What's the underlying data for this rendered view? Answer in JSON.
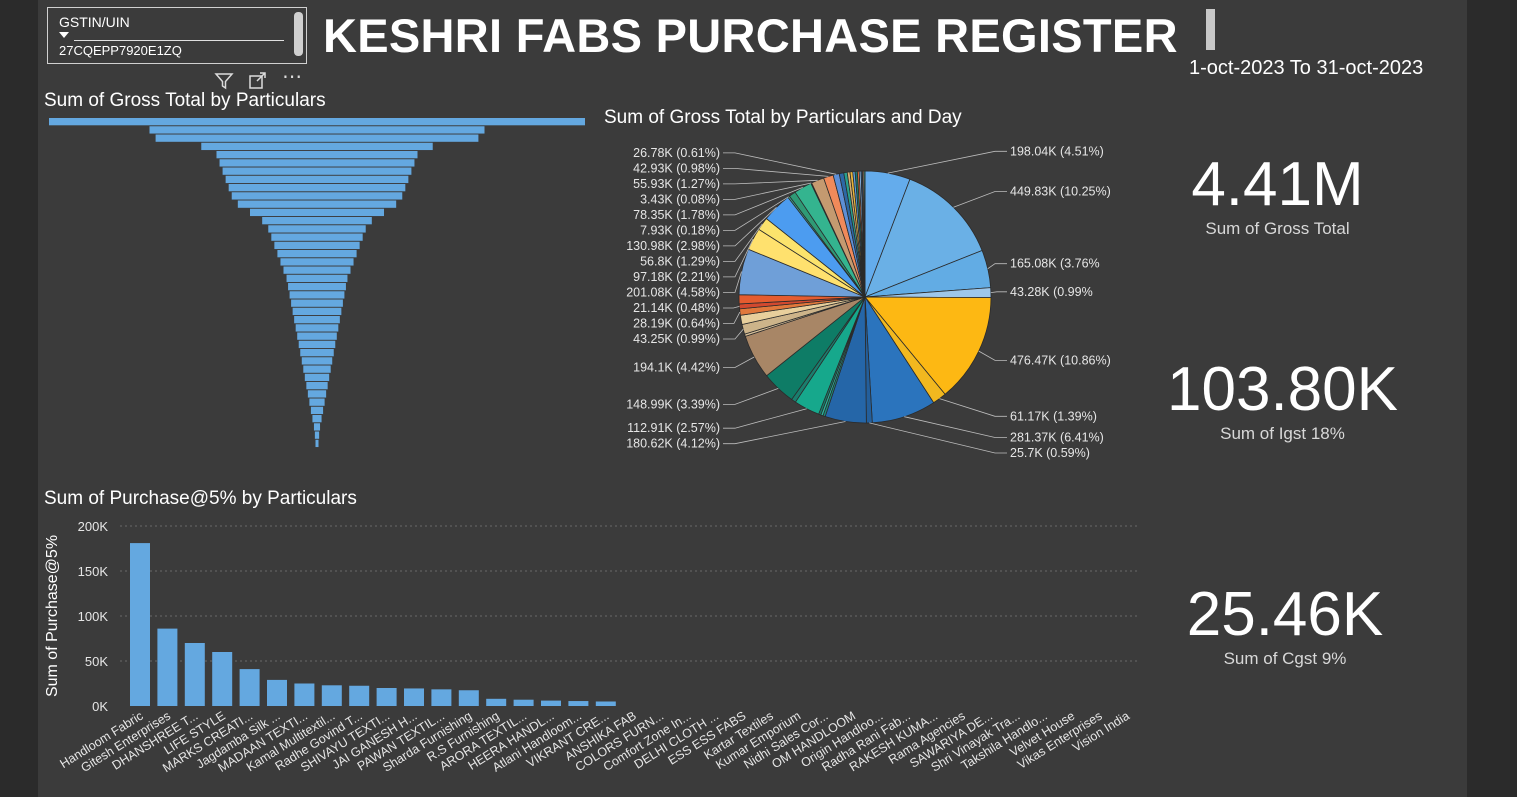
{
  "slicer": {
    "title": "GSTIN/UIN",
    "value": "27CQEPP7920E1ZQ"
  },
  "toolbar": {
    "filter_icon": "filter-icon",
    "focus_icon": "focus-mode-icon",
    "more_icon": "more-options-icon",
    "more_glyph": "⋯"
  },
  "header": {
    "title": "KESHRI FABS PURCHASE REGISTER",
    "date_range": "1-oct-2023 To 31-oct-2023"
  },
  "funnel": {
    "title": "Sum of Gross Total by Particulars"
  },
  "pie": {
    "title": "Sum of Gross Total by Particulars and Day"
  },
  "bar": {
    "title": "Sum of Purchase@5% by Particulars"
  },
  "cards": {
    "gross_total": {
      "value": "4.41M",
      "label": "Sum of Gross Total"
    },
    "igst": {
      "value": "103.80K",
      "label": "Sum of Igst 18%"
    },
    "cgst": {
      "value": "25.46K",
      "label": "Sum of Cgst 9%"
    }
  },
  "chart_data": [
    {
      "type": "funnel",
      "title": "Sum of Gross Total by Particulars",
      "values": [
        880000,
        550000,
        530000,
        380000,
        330000,
        320000,
        310000,
        300000,
        290000,
        280000,
        260000,
        220000,
        180000,
        160000,
        150000,
        140000,
        130000,
        120000,
        110000,
        100000,
        95000,
        90000,
        85000,
        80000,
        75000,
        70000,
        65000,
        60000,
        55000,
        50000,
        45000,
        40000,
        35000,
        30000,
        25000,
        20000,
        15000,
        10000,
        7000,
        4000
      ]
    },
    {
      "type": "pie",
      "title": "Sum of Gross Total by Particulars and Day",
      "slices": [
        {
          "label": "198.04K (4.51%)",
          "value": 198.04,
          "color": "#64acec"
        },
        {
          "label": "449.83K (10.25%)",
          "value": 449.83,
          "color": "#6ab0e6"
        },
        {
          "label": "165.08K (3.76%",
          "value": 165.08,
          "color": "#62ace4"
        },
        {
          "label": "43.28K (0.99%",
          "value": 43.28,
          "color": "#9ec7ea"
        },
        {
          "label": "476.47K (10.86%)",
          "value": 476.47,
          "color": "#fdb813"
        },
        {
          "label": "61.17K (1.39%)",
          "value": 61.17,
          "color": "#f2b81f"
        },
        {
          "label": "281.37K (6.41%)",
          "value": 281.37,
          "color": "#2b74bd"
        },
        {
          "label": "25.7K (0.59%)",
          "value": 25.7,
          "color": "#235f9c"
        },
        {
          "label": "180.62K (4.12%)",
          "value": 180.62,
          "color": "#2566a8"
        },
        {
          "label": "",
          "value": 10,
          "color": "#1a8d7a"
        },
        {
          "label": "",
          "value": 10,
          "color": "#2bb39a"
        },
        {
          "label": "",
          "value": 10,
          "color": "#167d6b"
        },
        {
          "label": "112.91K (2.57%)",
          "value": 112.91,
          "color": "#16a88c"
        },
        {
          "label": "",
          "value": 20,
          "color": "#1a7e6e"
        },
        {
          "label": "148.99K (3.39%)",
          "value": 148.99,
          "color": "#0e7c66"
        },
        {
          "label": "194.1K (4.42%)",
          "value": 194.1,
          "color": "#a88666"
        },
        {
          "label": "",
          "value": 10,
          "color": "#d8c09a"
        },
        {
          "label": "43.25K (0.99%)",
          "value": 43.25,
          "color": "#cdb48a"
        },
        {
          "label": "",
          "value": 40,
          "color": "#e8cf9c"
        },
        {
          "label": "28.19K (0.64%)",
          "value": 28.19,
          "color": "#e0783c"
        },
        {
          "label": "21.14K (0.48%)",
          "value": 21.14,
          "color": "#d2492f"
        },
        {
          "label": "",
          "value": 40,
          "color": "#e55c2f"
        },
        {
          "label": "201.08K (4.58%)",
          "value": 201.08,
          "color": "#6f9fd8"
        },
        {
          "label": "97.18K (2.21%)",
          "value": 97.18,
          "color": "#ffe16e"
        },
        {
          "label": "56.8K (1.29%)",
          "value": 56.8,
          "color": "#fbe36c"
        },
        {
          "label": "130.98K (2.98%)",
          "value": 130.98,
          "color": "#4c9cf0"
        },
        {
          "label": "7.93K (0.18%)",
          "value": 7.93,
          "color": "#3aa48c"
        },
        {
          "label": "",
          "value": 30,
          "color": "#2f9a76"
        },
        {
          "label": "78.35K (1.78%)",
          "value": 78.35,
          "color": "#34b48f"
        },
        {
          "label": "3.43K (0.08%)",
          "value": 3.43,
          "color": "#d07a4a"
        },
        {
          "label": "55.93K (1.27%)",
          "value": 55.93,
          "color": "#c49a70"
        },
        {
          "label": "42.93K (0.98%)",
          "value": 42.93,
          "color": "#f08a5a"
        },
        {
          "label": "26.78K (0.61%)",
          "value": 26.78,
          "color": "#5d8fd6"
        },
        {
          "label": "",
          "value": 20,
          "color": "#2c68a6"
        },
        {
          "label": "",
          "value": 15,
          "color": "#2aa08c"
        },
        {
          "label": "",
          "value": 12,
          "color": "#d6b072"
        },
        {
          "label": "",
          "value": 12,
          "color": "#e8b43a"
        },
        {
          "label": "",
          "value": 10,
          "color": "#5aa0e0"
        },
        {
          "label": "",
          "value": 10,
          "color": "#1f7a64"
        },
        {
          "label": "",
          "value": 8,
          "color": "#e06f3a"
        },
        {
          "label": "",
          "value": 8,
          "color": "#8bb8e8"
        },
        {
          "label": "",
          "value": 6,
          "color": "#2d5f91"
        },
        {
          "label": "",
          "value": 6,
          "color": "#aa8a6a"
        },
        {
          "label": "",
          "value": 5,
          "color": "#35b89a"
        }
      ]
    },
    {
      "type": "bar",
      "title": "Sum of Purchase@5% by Particulars",
      "xlabel": "",
      "ylabel": "Sum of Purchase@5%",
      "ylim": [
        0,
        200000
      ],
      "yticks": [
        {
          "value": 0,
          "label": "0K"
        },
        {
          "value": 50000,
          "label": "50K"
        },
        {
          "value": 100000,
          "label": "100K"
        },
        {
          "value": 150000,
          "label": "150K"
        },
        {
          "value": 200000,
          "label": "200K"
        }
      ],
      "grid": true,
      "color": "#64a8e0",
      "categories": [
        "Handloom Fabric",
        "Gitesh Enterprises",
        "DHANSHREE T...",
        "LIFE STYLE",
        "MARKS CREATI...",
        "Jagdamba Silk ...",
        "MADAAN TEXTI...",
        "Kamal Multitextil...",
        "Radhe Govind T...",
        "SHIVAYU TEXTI...",
        "JAI GANESH H...",
        "PAWAN TEXTIL...",
        "Sharda Furnishing",
        "R.S Furnishing",
        "ARORA TEXTIL...",
        "HEERA HANDL...",
        "Atlani Handloom...",
        "VIKRANT CRE...",
        "ANSHIKA FAB",
        "COLORS FURN...",
        "Comfort Zone In...",
        "DELHI CLOTH ...",
        "ESS ESS FABS",
        "Kartar Textiles",
        "Kumar Emporium",
        "Nidhi Sales Cor...",
        "OM HANDLOOM",
        "Origin Handloo...",
        "Radha Rani Fab...",
        "RAKESH KUMA...",
        "Rama Agencies",
        "SAWARIYA DE...",
        "Shri Vinayak Tra...",
        "Takshila Handlo...",
        "Velvet House",
        "Vikas Enterprises",
        "Vision India"
      ],
      "values": [
        181000,
        86000,
        70000,
        60000,
        41000,
        29000,
        25000,
        23000,
        22500,
        20000,
        19500,
        18500,
        17500,
        8000,
        7000,
        6000,
        5500,
        5000,
        0,
        0,
        0,
        0,
        0,
        0,
        0,
        0,
        0,
        0,
        0,
        0,
        0,
        0,
        0,
        0,
        0,
        0,
        0
      ]
    }
  ]
}
